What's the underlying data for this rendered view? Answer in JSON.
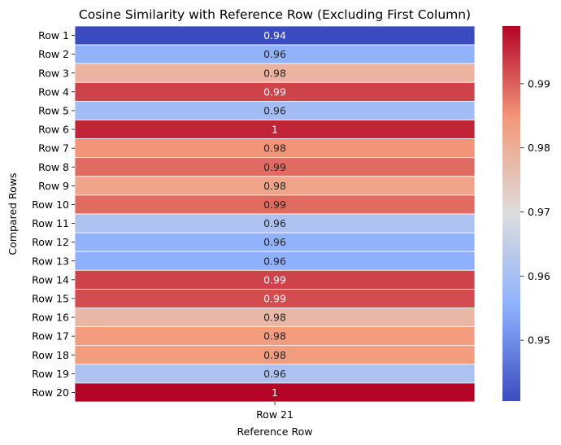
{
  "chart_data": {
    "type": "heatmap",
    "title": "Cosine Similarity with Reference Row (Excluding First Column)",
    "xlabel": "Reference Row",
    "ylabel": "Compared Rows",
    "x_categories": [
      "Row 21"
    ],
    "y_categories": [
      "Row 1",
      "Row 2",
      "Row 3",
      "Row 4",
      "Row 5",
      "Row 6",
      "Row 7",
      "Row 8",
      "Row 9",
      "Row 10",
      "Row 11",
      "Row 12",
      "Row 13",
      "Row 14",
      "Row 15",
      "Row 16",
      "Row 17",
      "Row 18",
      "Row 19",
      "Row 20"
    ],
    "values": [
      0.9405,
      0.956,
      0.979,
      0.993,
      0.959,
      0.996,
      0.985,
      0.989,
      0.982,
      0.989,
      0.961,
      0.956,
      0.9555,
      0.993,
      0.992,
      0.978,
      0.984,
      0.984,
      0.961,
      0.999
    ],
    "annotations": [
      "0.94",
      "0.96",
      "0.98",
      "0.99",
      "0.96",
      "1",
      "0.98",
      "0.99",
      "0.98",
      "0.99",
      "0.96",
      "0.96",
      "0.96",
      "0.99",
      "0.99",
      "0.98",
      "0.98",
      "0.98",
      "0.96",
      "1"
    ],
    "colormap": "coolwarm",
    "colorbar": {
      "range": [
        0.9405,
        0.999
      ],
      "ticks": [
        0.95,
        0.96,
        0.97,
        0.98,
        0.99
      ],
      "tick_labels": [
        "0.95",
        "0.96",
        "0.97",
        "0.98",
        "0.99"
      ]
    },
    "grid": false
  }
}
